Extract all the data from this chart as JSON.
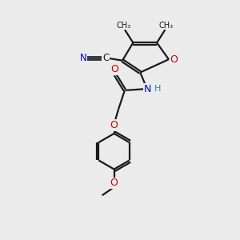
{
  "bg_color": "#ebebeb",
  "bond_color": "#1a1a1a",
  "atom_colors": {
    "O": "#cc0000",
    "N": "#0000cc",
    "C": "#1a1a1a",
    "H": "#2e8b8b"
  },
  "figsize": [
    3.0,
    3.0
  ],
  "dpi": 100,
  "xlim": [
    0,
    10
  ],
  "ylim": [
    0,
    10
  ]
}
